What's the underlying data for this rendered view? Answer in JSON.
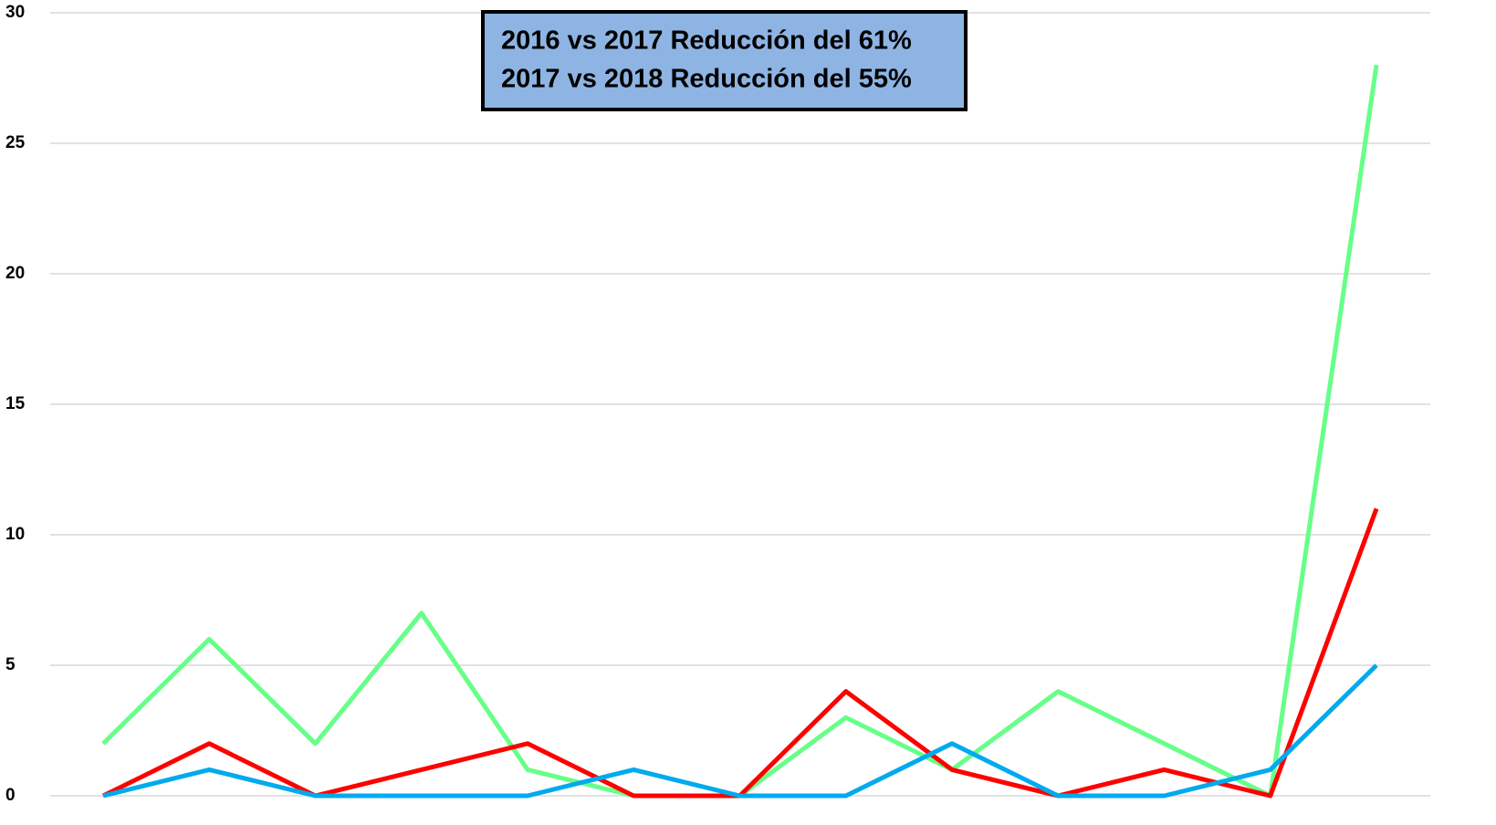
{
  "chart_data": {
    "type": "line",
    "annotation": [
      "2016 vs 2017 Reducción  del 61%",
      "2017 vs 2018 Reducción del 55%"
    ],
    "categories": [
      null,
      null,
      null,
      null,
      null,
      null,
      null,
      null,
      null,
      null,
      null,
      null,
      null
    ],
    "series": [
      {
        "color": "#66ff88",
        "values": [
          2,
          6,
          2,
          7,
          1,
          0,
          0,
          3,
          1,
          4,
          2,
          0,
          28
        ]
      },
      {
        "color": "#ff0000",
        "values": [
          0,
          2,
          0,
          1,
          2,
          0,
          0,
          4,
          1,
          0,
          1,
          0,
          11
        ]
      },
      {
        "color": "#00aaee",
        "values": [
          0,
          1,
          0,
          0,
          0,
          1,
          0,
          0,
          2,
          0,
          0,
          1,
          5
        ]
      }
    ],
    "ylim": [
      0,
      30
    ],
    "yticks": [
      0,
      5,
      10,
      15,
      20,
      25,
      30
    ],
    "grid": true
  }
}
